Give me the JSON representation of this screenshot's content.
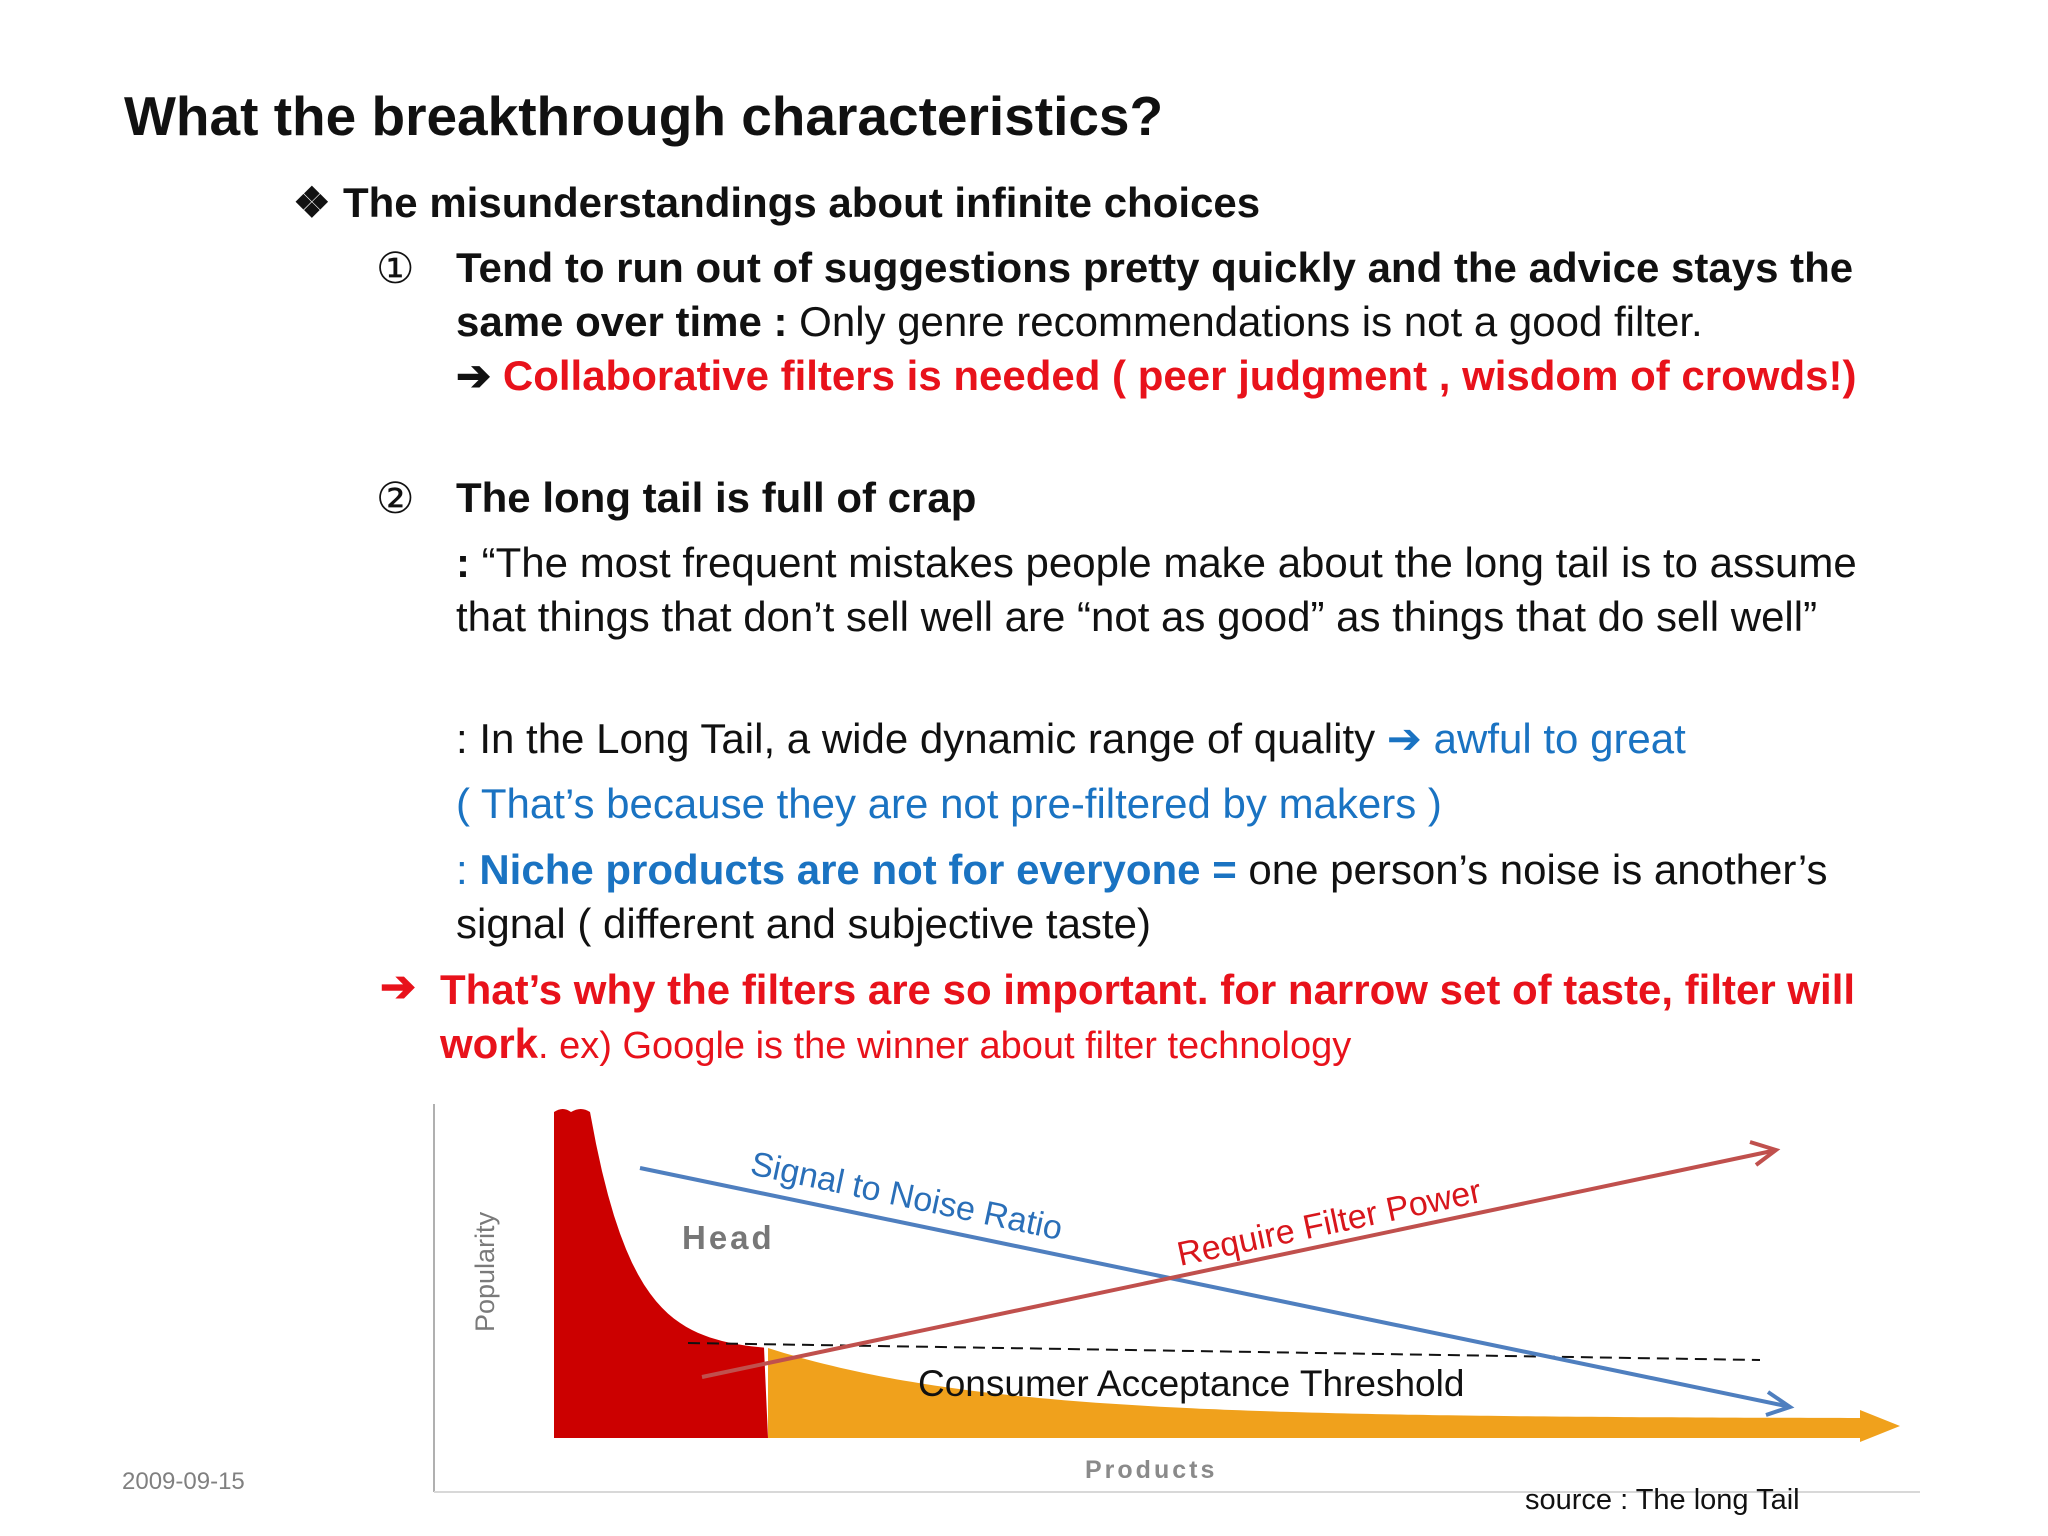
{
  "title": "What the breakthrough characteristics?",
  "bullet": {
    "icon": "diamond-bullet-icon",
    "text": "The misunderstandings about infinite choices"
  },
  "item1": {
    "number": "①",
    "bold_text": "Tend to run out of suggestions pretty quickly and the advice stays the same over time :",
    "normal_text": " Only genre recommendations is not a good filter.",
    "arrow_text": " Collaborative filters is needed ( peer judgment , wisdom of crowds!)"
  },
  "item2": {
    "number": "②",
    "heading": "The long tail is full of crap",
    "quote_colon": ":",
    "quote": " “The most frequent mistakes people make about the long tail is to assume that things that don’t sell well are “not as good” as things that do sell well”",
    "range_text": ": In the Long Tail, a wide dynamic range of quality ",
    "range_blue": " awful to great",
    "prefilter": "( That’s because they are not pre-filtered by makers )",
    "niche_colon": ": ",
    "niche_bold": "Niche products are not for everyone =",
    "niche_rest": " one person’s noise is another’s signal ( different and subjective taste)"
  },
  "conclusion": {
    "bold": " That’s why the filters are so important. for narrow set of taste, filter will work",
    "rest": ". ex) Google is the winner about filter technology"
  },
  "chart_data": {
    "type": "line",
    "y_axis_label": "Popularity",
    "x_axis_label": "Products",
    "labels": {
      "head": "Head",
      "signal_line": "Signal to Noise Ratio",
      "filter_line": "Require Filter Power",
      "threshold": "Consumer Acceptance Threshold"
    },
    "colors": {
      "head": "#cc0000",
      "tail": "#f0a11c",
      "signal_line": "#4f7fbf",
      "filter_line": "#c0504d"
    }
  },
  "source": "source : The long Tail",
  "date": "2009-09-15"
}
